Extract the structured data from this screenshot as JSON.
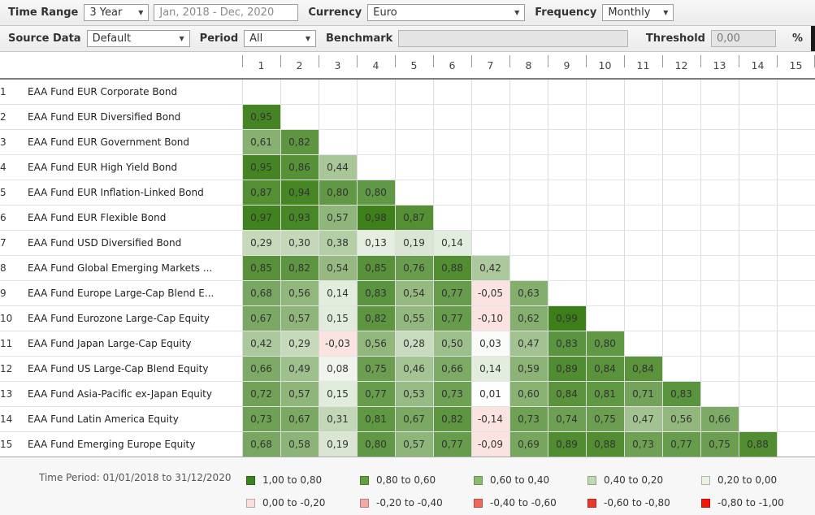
{
  "toolbar": {
    "time_range_label": "Time Range",
    "time_range_value": "3 Year",
    "date_range_value": "Jan, 2018 - Dec, 2020",
    "currency_label": "Currency",
    "currency_value": "Euro",
    "frequency_label": "Frequency",
    "frequency_value": "Monthly",
    "source_data_label": "Source Data",
    "source_data_value": "Default",
    "period_label": "Period",
    "period_value": "All",
    "benchmark_label": "Benchmark",
    "benchmark_value": "",
    "threshold_label": "Threshold",
    "threshold_value": "0,00",
    "percent_label": "%"
  },
  "matrix": {
    "column_headers": [
      "1",
      "2",
      "3",
      "4",
      "5",
      "6",
      "7",
      "8",
      "9",
      "10",
      "11",
      "12",
      "13",
      "14",
      "15"
    ],
    "rows": [
      {
        "num": "1",
        "name": "EAA Fund EUR Corporate Bond",
        "values": []
      },
      {
        "num": "2",
        "name": "EAA Fund EUR Diversified Bond",
        "values": [
          "0,95"
        ]
      },
      {
        "num": "3",
        "name": "EAA Fund EUR Government Bond",
        "values": [
          "0,61",
          "0,82"
        ]
      },
      {
        "num": "4",
        "name": "EAA Fund EUR High Yield Bond",
        "values": [
          "0,95",
          "0,86",
          "0,44"
        ]
      },
      {
        "num": "5",
        "name": "EAA Fund EUR Inflation-Linked Bond",
        "values": [
          "0,87",
          "0,94",
          "0,80",
          "0,80"
        ]
      },
      {
        "num": "6",
        "name": "EAA Fund EUR Flexible Bond",
        "values": [
          "0,97",
          "0,93",
          "0,57",
          "0,98",
          "0,87"
        ]
      },
      {
        "num": "7",
        "name": "EAA Fund USD Diversified Bond",
        "values": [
          "0,29",
          "0,30",
          "0,38",
          "0,13",
          "0,19",
          "0,14"
        ]
      },
      {
        "num": "8",
        "name": "EAA Fund Global Emerging Markets ...",
        "values": [
          "0,85",
          "0,82",
          "0,54",
          "0,85",
          "0,76",
          "0,88",
          "0,42"
        ]
      },
      {
        "num": "9",
        "name": "EAA Fund Europe Large-Cap Blend E...",
        "values": [
          "0,68",
          "0,56",
          "0,14",
          "0,83",
          "0,54",
          "0,77",
          "-0,05",
          "0,63"
        ]
      },
      {
        "num": "10",
        "name": "EAA Fund Eurozone Large-Cap Equity",
        "values": [
          "0,67",
          "0,57",
          "0,15",
          "0,82",
          "0,55",
          "0,77",
          "-0,10",
          "0,62",
          "0,99"
        ]
      },
      {
        "num": "11",
        "name": "EAA Fund Japan Large-Cap Equity",
        "values": [
          "0,42",
          "0,29",
          "-0,03",
          "0,56",
          "0,28",
          "0,50",
          "0,03",
          "0,47",
          "0,83",
          "0,80"
        ]
      },
      {
        "num": "12",
        "name": "EAA Fund US Large-Cap Blend Equity",
        "values": [
          "0,66",
          "0,49",
          "0,08",
          "0,75",
          "0,46",
          "0,66",
          "0,14",
          "0,59",
          "0,89",
          "0,84",
          "0,84"
        ]
      },
      {
        "num": "13",
        "name": "EAA Fund Asia-Pacific ex-Japan Equity",
        "values": [
          "0,72",
          "0,57",
          "0,15",
          "0,77",
          "0,53",
          "0,73",
          "0,01",
          "0,60",
          "0,84",
          "0,81",
          "0,71",
          "0,83"
        ]
      },
      {
        "num": "14",
        "name": "EAA Fund Latin America Equity",
        "values": [
          "0,73",
          "0,67",
          "0,31",
          "0,81",
          "0,67",
          "0,82",
          "-0,14",
          "0,73",
          "0,74",
          "0,75",
          "0,47",
          "0,56",
          "0,66"
        ]
      },
      {
        "num": "15",
        "name": "EAA Fund Emerging Europe Equity",
        "values": [
          "0,68",
          "0,58",
          "0,19",
          "0,80",
          "0,57",
          "0,77",
          "-0,09",
          "0,69",
          "0,89",
          "0,88",
          "0,73",
          "0,77",
          "0,75",
          "0,88"
        ]
      }
    ]
  },
  "footer": {
    "time_period": "Time Period: 01/01/2018 to 31/12/2020",
    "legend": [
      {
        "label": "1,00 to 0,80",
        "color": "#3c8220"
      },
      {
        "label": "0,80 to 0,60",
        "color": "#61a140"
      },
      {
        "label": "0,60 to 0,40",
        "color": "#8cbb6d"
      },
      {
        "label": "0,40 to 0,20",
        "color": "#c1d9ae"
      },
      {
        "label": "0,20 to 0,00",
        "color": "#eaf3e2"
      },
      {
        "label": "0,00 to -0,20",
        "color": "#fbdfdd"
      },
      {
        "label": "-0,20 to -0,40",
        "color": "#f3a9a3"
      },
      {
        "label": "-0,40 to -0,60",
        "color": "#f0685a"
      },
      {
        "label": "-0,60 to -0,80",
        "color": "#ea392a"
      },
      {
        "label": "-0,80 to -1,00",
        "color": "#f01505"
      }
    ]
  },
  "colors": {
    "positive_full": "#3a7e16",
    "negative_bucket_1": "#fbe3e2",
    "negative_bucket_2": "#f3a9a3",
    "negative_bucket_3": "#f0685a",
    "negative_bucket_4": "#ea392a",
    "negative_bucket_5": "#f01505"
  }
}
